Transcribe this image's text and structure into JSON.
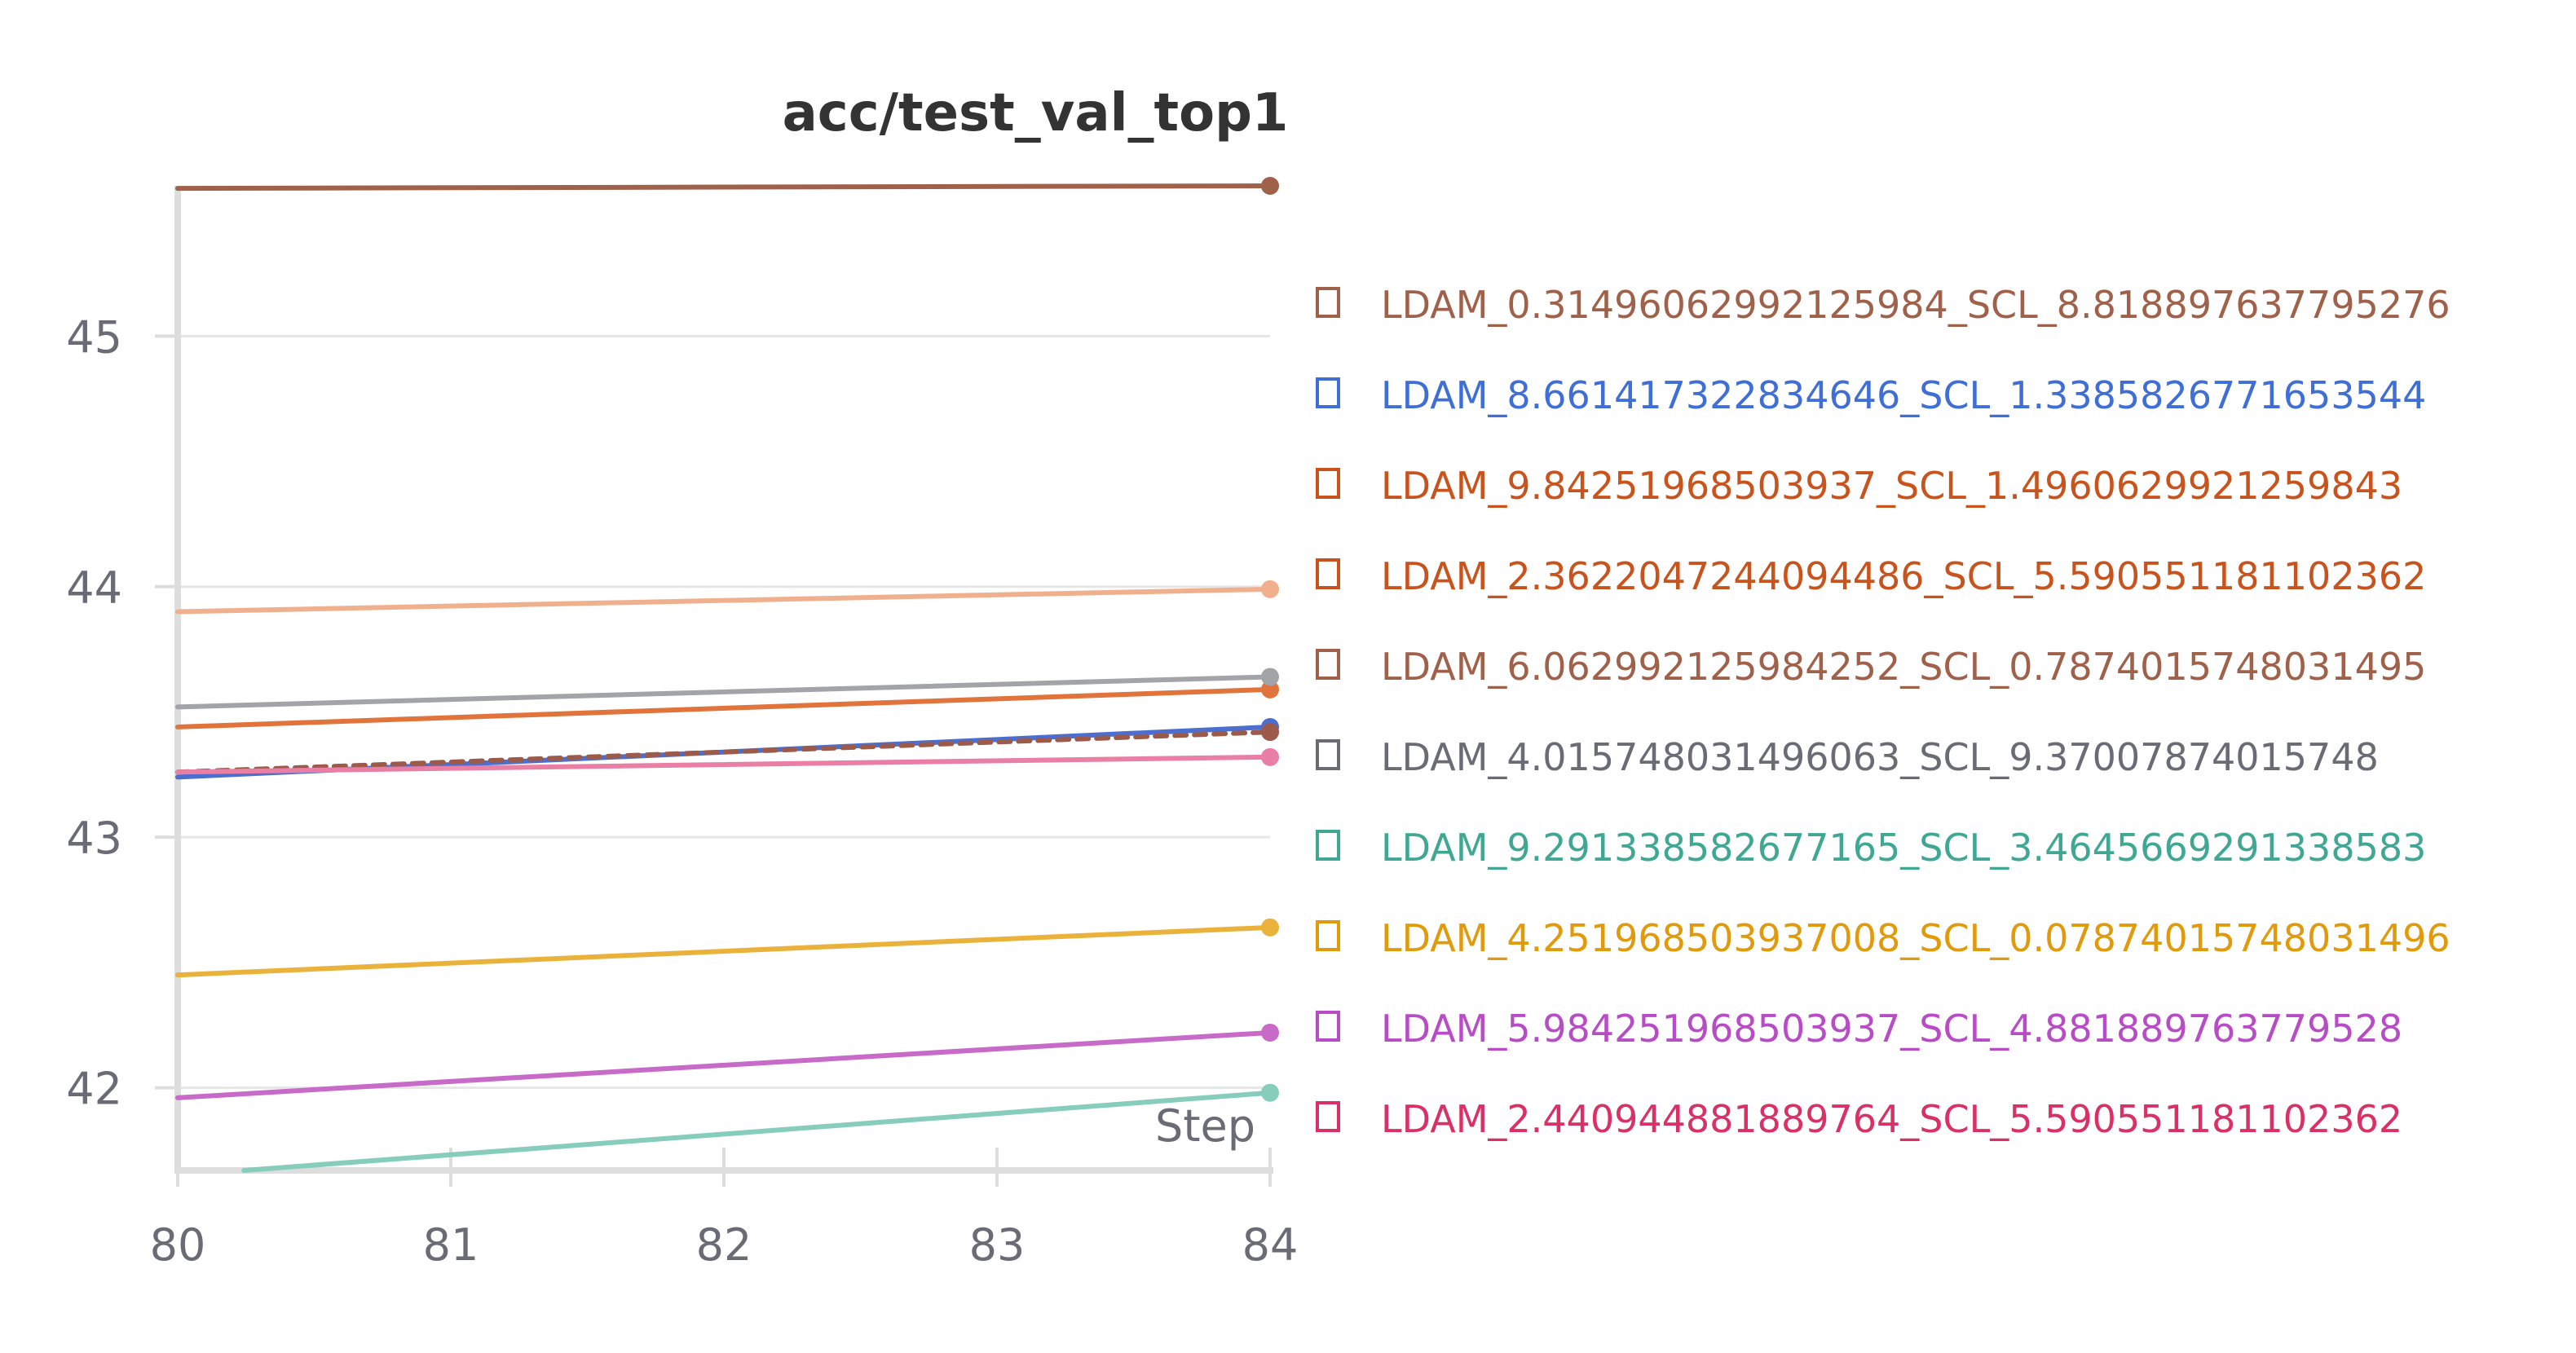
{
  "chart_data": {
    "type": "line",
    "title": "acc/test_val_top1",
    "xlabel": "Step",
    "ylabel": "",
    "x": [
      80,
      84
    ],
    "xticks": [
      80,
      81,
      82,
      83,
      84
    ],
    "yticks": [
      42,
      43,
      44,
      45
    ],
    "xlim": [
      80,
      84
    ],
    "ylim": [
      41.67,
      45.6
    ],
    "grid": true,
    "legend_position": "right",
    "series": [
      {
        "name": "LDAM_0.31496062992125984_SCL_8.818897637795276",
        "color": "#a0614a",
        "legend_color": "#a0614a",
        "values": [
          45.59,
          45.6
        ],
        "dashed": false
      },
      {
        "name": "LDAM_8.661417322834646_SCL_1.3385826771653544",
        "color": "#4c6fcf",
        "legend_color": "#3e6ed6",
        "values": [
          43.24,
          43.44
        ],
        "dashed": false
      },
      {
        "name": "LDAM_9.84251968503937_SCL_1.4960629921259843",
        "color": "#e0743c",
        "legend_color": "#c9531d",
        "values": [
          43.44,
          43.59
        ],
        "dashed": false
      },
      {
        "name": "LDAM_2.3622047244094486_SCL_5.590551181102362",
        "color": "#f0b08e",
        "legend_color": "#c9531d",
        "values": [
          43.9,
          43.99
        ],
        "dashed": false
      },
      {
        "name": "LDAM_6.062992125984252_SCL_0.7874015748031495",
        "color": "#9b5a4a",
        "legend_color": "#a0614a",
        "values": [
          43.26,
          43.42
        ],
        "dashed": true
      },
      {
        "name": "LDAM_4.015748031496063_SCL_9.37007874015748",
        "color": "#a2a4a8",
        "legend_color": "#6b6b75",
        "values": [
          43.52,
          43.64
        ],
        "dashed": false
      },
      {
        "name": "LDAM_9.291338582677165_SCL_3.4645669291338583",
        "color": "#86cdbb",
        "legend_color": "#3fa792",
        "values": [
          41.65,
          41.98
        ],
        "dashed": false
      },
      {
        "name": "LDAM_4.251968503937008_SCL_0.07874015748031496",
        "color": "#eab23a",
        "legend_color": "#e09a0c",
        "values": [
          42.45,
          42.64
        ],
        "dashed": false
      },
      {
        "name": "LDAM_5.984251968503937_SCL_4.881889763779528",
        "color": "#c86ac8",
        "legend_color": "#b84cc6",
        "values": [
          41.96,
          42.22
        ],
        "dashed": false
      },
      {
        "name": "LDAM_2.440944881889764_SCL_5.590551181102362",
        "color": "#e97fa4",
        "legend_color": "#d93066",
        "values": [
          43.26,
          43.32
        ],
        "dashed": false
      }
    ]
  }
}
